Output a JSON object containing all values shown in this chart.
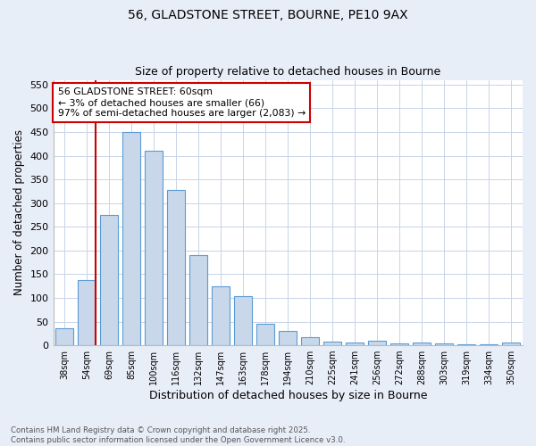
{
  "title1": "56, GLADSTONE STREET, BOURNE, PE10 9AX",
  "title2": "Size of property relative to detached houses in Bourne",
  "xlabel": "Distribution of detached houses by size in Bourne",
  "ylabel": "Number of detached properties",
  "categories": [
    "38sqm",
    "54sqm",
    "69sqm",
    "85sqm",
    "100sqm",
    "116sqm",
    "132sqm",
    "147sqm",
    "163sqm",
    "178sqm",
    "194sqm",
    "210sqm",
    "225sqm",
    "241sqm",
    "256sqm",
    "272sqm",
    "288sqm",
    "303sqm",
    "319sqm",
    "334sqm",
    "350sqm"
  ],
  "values": [
    35,
    137,
    275,
    450,
    410,
    327,
    190,
    125,
    103,
    46,
    30,
    18,
    8,
    5,
    10,
    4,
    5,
    4,
    2,
    2,
    6
  ],
  "bar_color": "#c8d8ea",
  "bar_edge_color": "#5b9bd5",
  "grid_color": "#c8d4e8",
  "background_color": "#e8eef8",
  "plot_bg_color": "#ffffff",
  "vline_color": "#cc0000",
  "vline_x": 1.4,
  "annotation_text": "56 GLADSTONE STREET: 60sqm\n← 3% of detached houses are smaller (66)\n97% of semi-detached houses are larger (2,083) →",
  "annotation_box_color": "#ffffff",
  "annotation_box_edge": "#cc0000",
  "footer1": "Contains HM Land Registry data © Crown copyright and database right 2025.",
  "footer2": "Contains public sector information licensed under the Open Government Licence v3.0.",
  "ylim": [
    0,
    560
  ],
  "yticks": [
    0,
    50,
    100,
    150,
    200,
    250,
    300,
    350,
    400,
    450,
    500,
    550
  ]
}
